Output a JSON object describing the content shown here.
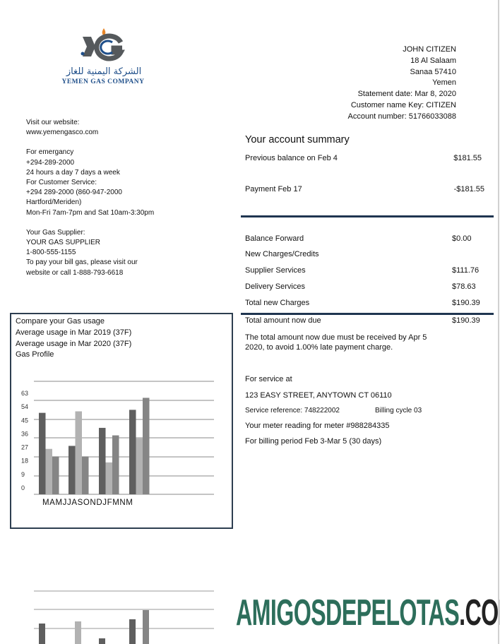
{
  "logo": {
    "arabic": "الشركة اليمنية للغاز",
    "english": "YEMEN GAS COMPANY",
    "colors": {
      "blue": "#1f4f8a",
      "gray": "#55595c",
      "flame": "#e8872a"
    }
  },
  "customer": {
    "name": "JOHN CITIZEN",
    "street": "18 Al Salaam",
    "city": "Sanaa 57410",
    "country": "Yemen",
    "statement_date": "Statement date: Mar 8, 2020",
    "name_key": "Customer name Key: CITIZEN",
    "account_number": "Account number: 51766033088"
  },
  "contact": {
    "website_label": "Visit our website:",
    "website": "www.yemengasco.com",
    "emergency_label": "For emergancy",
    "emergency_phone": "+294-289-2000",
    "emergency_hours": "24 hours a day 7 days a week",
    "service_label": "For Customer Service:",
    "service_phone": "+294 289-2000 (860-947-2000",
    "service_area": "Hartford/Meriden)",
    "service_hours": "Mon-Fri 7am-7pm and Sat 10am-3:30pm",
    "supplier_label": "Your Gas Supplier:",
    "supplier_name": "YOUR GAS SUPPLIER",
    "supplier_phone": "1-800-555-1155",
    "pay_line1": "To pay your bill gas, please visit our",
    "pay_line2": "website or call 1-888-793-6618"
  },
  "summary": {
    "title": "Your account summary",
    "previous": {
      "label": "Previous balance on Feb 4",
      "amount": "$181.55"
    },
    "payment": {
      "label": "Payment Feb 17",
      "amount": "-$181.55"
    },
    "balance_forward": {
      "label": "Balance Forward",
      "amount": "$0.00"
    },
    "new_charges_label": "New Charges/Credits",
    "supplier": {
      "label": "Supplier Services",
      "amount": "$111.76"
    },
    "delivery": {
      "label": "Delivery Services",
      "amount": "$78.63"
    },
    "total_new": {
      "label": "Total new Charges",
      "amount": "$190.39"
    },
    "total_due": {
      "label": "Total amount now due",
      "amount": "$190.39"
    },
    "due_note1": "The total amount now due must be received by Apr 5",
    "due_note2": "2020, to avoid 1.00% late payment charge."
  },
  "service": {
    "label": "For service at",
    "address": "123 EASY STREET, ANYTOWN CT 06110",
    "reference": "Service reference: 748222002",
    "cycle": "Billing cycle 03",
    "meter": "Your meter reading for meter #988284335",
    "period": "For billing period Feb 3-Mar 5 (30 days)"
  },
  "chart_data": {
    "type": "bar",
    "title_lines": [
      "Compare your Gas usage",
      "Average usage in Mar 2019 (37F)",
      "Average usage in Mar 2020 (37F)",
      "Gas Profile"
    ],
    "x_label_text": "MAMJJASONDJFMNM",
    "yticks": [
      0,
      9,
      18,
      27,
      36,
      45,
      54,
      63
    ],
    "ylim": [
      0,
      63
    ],
    "grid": true,
    "groups": [
      [
        50,
        26,
        21
      ],
      [
        28,
        51,
        21
      ],
      [
        40,
        17,
        35
      ],
      [
        52,
        33,
        60
      ]
    ],
    "colors": [
      "#5f5f5f",
      "#b2b2b2",
      "#858585"
    ]
  },
  "watermark": {
    "green": "AMIGOSDEPELOTAS",
    "dark": ".COM",
    "green_color": "#2d6e5b",
    "dark_color": "#222222"
  }
}
